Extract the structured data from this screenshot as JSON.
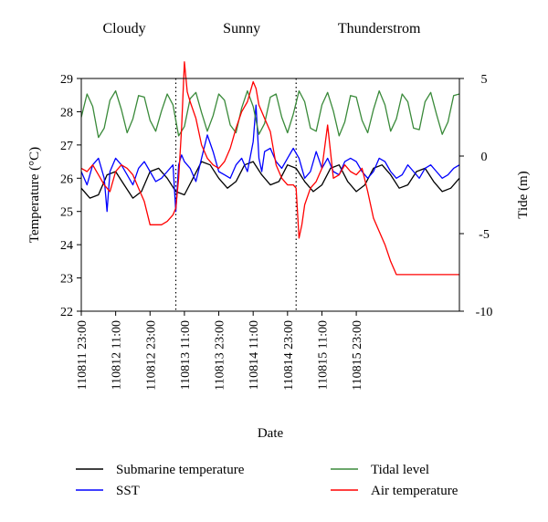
{
  "chart_data": {
    "type": "line",
    "title": "",
    "xlabel": "Date",
    "ylabel": "Temperature (°C)",
    "y2label": "Tide (m)",
    "xlim": [
      0,
      132
    ],
    "ylim": [
      22,
      29
    ],
    "y2lim": [
      -10,
      5
    ],
    "x_unit": "hours from 110811 23:00",
    "x_ticks": [
      {
        "x": 0,
        "label": "110811 23:00"
      },
      {
        "x": 12,
        "label": "110812 11:00"
      },
      {
        "x": 24,
        "label": "110812 23:00"
      },
      {
        "x": 36,
        "label": "110813 11:00"
      },
      {
        "x": 48,
        "label": "110813 23:00"
      },
      {
        "x": 60,
        "label": "110814 11:00"
      },
      {
        "x": 72,
        "label": "110814 23:00"
      },
      {
        "x": 84,
        "label": "110815 11:00"
      },
      {
        "x": 96,
        "label": "110815 23:00"
      }
    ],
    "y_ticks": [
      22,
      23,
      24,
      25,
      26,
      27,
      28,
      29
    ],
    "y2_ticks": [
      -10,
      -5,
      0,
      5
    ],
    "periods": [
      {
        "label": "Cloudy",
        "x": 15
      },
      {
        "label": "Sunny",
        "x": 56
      },
      {
        "label": "Thunderstrom",
        "x": 104
      }
    ],
    "dividers": [
      33,
      75
    ],
    "legend_position": "bottom",
    "series": [
      {
        "name": "Submarine temperature",
        "color": "#000000",
        "axis": "left",
        "x": [
          0,
          3,
          6,
          9,
          12,
          15,
          18,
          21,
          24,
          27,
          30,
          33,
          36,
          39,
          42,
          45,
          48,
          51,
          54,
          57,
          60,
          63,
          66,
          69,
          72,
          75,
          78,
          81,
          84,
          87,
          90,
          93,
          96,
          99,
          102,
          105,
          108,
          111,
          114,
          117,
          120,
          123,
          126,
          129,
          132
        ],
        "values": [
          25.7,
          25.4,
          25.5,
          26.1,
          26.2,
          25.8,
          25.4,
          25.6,
          26.2,
          26.3,
          26.0,
          25.6,
          25.5,
          26.0,
          26.5,
          26.4,
          26.0,
          25.7,
          25.9,
          26.4,
          26.5,
          26.1,
          25.8,
          25.9,
          26.4,
          26.3,
          25.9,
          25.6,
          25.8,
          26.3,
          26.4,
          25.9,
          25.6,
          25.8,
          26.3,
          26.4,
          26.1,
          25.7,
          25.8,
          26.2,
          26.3,
          25.9,
          25.6,
          25.7,
          26.0
        ]
      },
      {
        "name": "SST",
        "color": "#0000ff",
        "axis": "left",
        "x": [
          0,
          2,
          4,
          6,
          8,
          9,
          10,
          12,
          14,
          16,
          18,
          20,
          22,
          24,
          26,
          28,
          30,
          32,
          33,
          34,
          35,
          36,
          38,
          40,
          42,
          44,
          46,
          48,
          50,
          52,
          54,
          56,
          58,
          60,
          61,
          62,
          63,
          64,
          66,
          68,
          70,
          72,
          74,
          76,
          78,
          80,
          82,
          84,
          86,
          88,
          90,
          92,
          94,
          96,
          98,
          100,
          102,
          104,
          106,
          108,
          110,
          112,
          114,
          116,
          118,
          120,
          122,
          124,
          126,
          128,
          130,
          132
        ],
        "values": [
          26.2,
          25.8,
          26.4,
          26.6,
          26.0,
          25.0,
          26.2,
          26.6,
          26.4,
          26.1,
          25.8,
          26.3,
          26.5,
          26.2,
          25.9,
          26.0,
          26.2,
          26.4,
          25.0,
          26.4,
          26.7,
          26.5,
          26.3,
          25.9,
          26.6,
          27.3,
          26.8,
          26.2,
          26.1,
          26.0,
          26.4,
          26.6,
          26.2,
          27.1,
          28.2,
          26.6,
          26.2,
          26.8,
          26.9,
          26.5,
          26.3,
          26.6,
          26.9,
          26.6,
          26.0,
          26.2,
          26.8,
          26.3,
          26.6,
          26.2,
          26.1,
          26.5,
          26.6,
          26.5,
          26.2,
          26.0,
          26.2,
          26.6,
          26.5,
          26.2,
          26.0,
          26.1,
          26.4,
          26.2,
          26.0,
          26.3,
          26.4,
          26.2,
          26.0,
          26.1,
          26.3,
          26.4
        ]
      },
      {
        "name": "Tidal level",
        "color": "#3a8a3a",
        "axis": "right",
        "x": [
          0,
          2,
          4,
          6,
          8,
          10,
          12,
          14,
          16,
          18,
          20,
          22,
          24,
          26,
          28,
          30,
          32,
          34,
          36,
          38,
          40,
          42,
          44,
          46,
          48,
          50,
          52,
          54,
          56,
          58,
          60,
          62,
          64,
          66,
          68,
          70,
          72,
          74,
          76,
          78,
          80,
          82,
          84,
          86,
          88,
          90,
          92,
          94,
          96,
          98,
          100,
          102,
          104,
          106,
          108,
          110,
          112,
          114,
          116,
          118,
          120,
          122,
          124,
          126,
          128,
          130,
          132
        ],
        "values": [
          2.5,
          4.0,
          3.2,
          1.2,
          1.8,
          3.6,
          4.2,
          3.0,
          1.5,
          2.4,
          3.9,
          3.8,
          2.3,
          1.6,
          2.9,
          4.0,
          3.3,
          1.3,
          1.9,
          3.7,
          4.1,
          2.8,
          1.6,
          2.6,
          4.0,
          3.6,
          2.0,
          1.5,
          3.1,
          4.2,
          3.2,
          1.4,
          2.1,
          3.8,
          4.0,
          2.5,
          1.5,
          2.7,
          4.2,
          3.5,
          1.8,
          1.6,
          3.3,
          4.1,
          2.9,
          1.3,
          2.2,
          3.9,
          3.8,
          2.3,
          1.5,
          3.0,
          4.2,
          3.3,
          1.6,
          2.4,
          4.0,
          3.5,
          1.8,
          1.7,
          3.5,
          4.1,
          2.7,
          1.4,
          2.2,
          3.9,
          4.0
        ]
      },
      {
        "name": "Air temperature",
        "color": "#ff0000",
        "axis": "left",
        "x": [
          0,
          2,
          4,
          6,
          8,
          10,
          12,
          14,
          16,
          18,
          20,
          22,
          24,
          26,
          28,
          30,
          32,
          33,
          34,
          35,
          36,
          37,
          38,
          40,
          42,
          44,
          46,
          48,
          50,
          52,
          54,
          56,
          58,
          60,
          61,
          62,
          64,
          66,
          68,
          70,
          72,
          74,
          75,
          76,
          77,
          78,
          80,
          82,
          84,
          86,
          88,
          90,
          92,
          94,
          96,
          98,
          100,
          102,
          104,
          106,
          108,
          110,
          112,
          114,
          116,
          118,
          120,
          122,
          124,
          126,
          128,
          130,
          132
        ],
        "values": [
          26.3,
          26.2,
          26.4,
          26.1,
          25.8,
          25.6,
          26.2,
          26.4,
          26.3,
          26.1,
          25.7,
          25.3,
          24.6,
          24.6,
          24.6,
          24.7,
          24.9,
          25.1,
          26.0,
          27.5,
          29.5,
          28.6,
          28.3,
          27.8,
          27.0,
          26.6,
          26.4,
          26.3,
          26.5,
          26.9,
          27.5,
          28.0,
          28.3,
          28.9,
          28.7,
          28.2,
          27.8,
          27.4,
          26.4,
          26.0,
          25.8,
          25.8,
          25.7,
          24.2,
          24.6,
          25.2,
          25.7,
          25.9,
          26.3,
          27.6,
          26.0,
          26.1,
          26.4,
          26.2,
          26.1,
          26.3,
          25.6,
          24.8,
          24.4,
          24.0,
          23.5,
          23.1,
          23.1,
          23.1,
          23.1,
          23.1,
          23.1,
          23.1,
          23.1,
          23.1,
          23.1,
          23.1,
          23.1
        ]
      }
    ]
  },
  "legend": {
    "items": [
      {
        "label": "Submarine temperature",
        "color": "#000000"
      },
      {
        "label": "Tidal level",
        "color": "#3a8a3a"
      },
      {
        "label": "SST",
        "color": "#0000ff"
      },
      {
        "label": "Air temperature",
        "color": "#ff0000"
      }
    ]
  }
}
